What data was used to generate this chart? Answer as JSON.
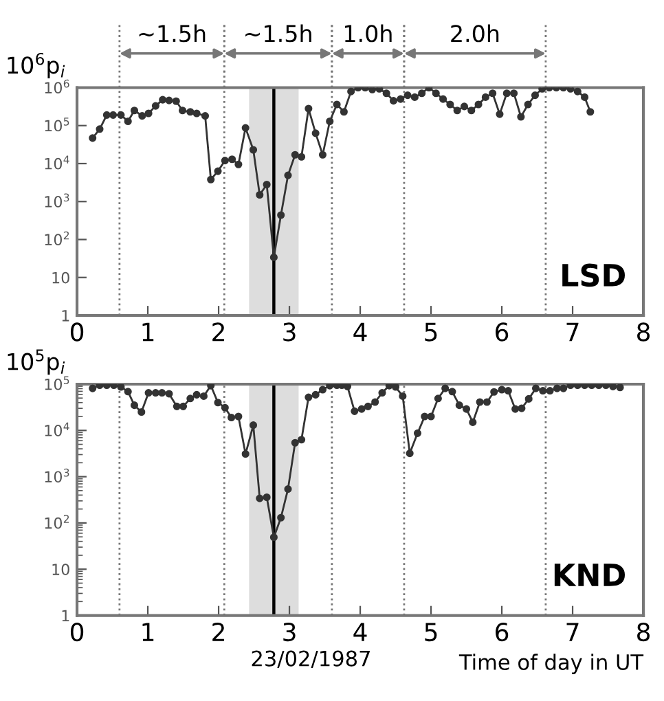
{
  "chart_data": [
    {
      "type": "line",
      "ylabel": "10$^{6}$p$_{i}$",
      "annotations": [
        "LSD"
      ],
      "marker": "circle",
      "line_style": "solid",
      "log": "y",
      "grid": false,
      "legend": false,
      "xlim": [
        0,
        8
      ],
      "xticks": [
        0,
        1,
        2,
        3,
        4,
        5,
        6,
        7,
        8
      ],
      "ylim": [
        1,
        1000000
      ],
      "yticks": [
        1,
        10,
        {
          "value": 100,
          "label": "10$^{2}$"
        },
        {
          "value": 1000,
          "label": "10$^{3}$"
        },
        {
          "value": 10000,
          "label": "10$^{4}$"
        },
        {
          "value": 100000,
          "label": "10$^{5}$"
        },
        {
          "value": 1000000,
          "label": "10$^{6}$"
        }
      ],
      "x": [
        0.22,
        0.32,
        0.42,
        0.51,
        0.62,
        0.72,
        0.81,
        0.92,
        1.01,
        1.11,
        1.21,
        1.3,
        1.4,
        1.49,
        1.6,
        1.69,
        1.81,
        1.89,
        1.99,
        2.09,
        2.19,
        2.28,
        2.38,
        2.49,
        2.58,
        2.68,
        2.78,
        2.88,
        2.98,
        3.08,
        3.17,
        3.27,
        3.37,
        3.47,
        3.57,
        3.67,
        3.77,
        3.87,
        3.97,
        4.07,
        4.17,
        4.27,
        4.37,
        4.47,
        4.57,
        4.67,
        4.77,
        4.87,
        4.97,
        5.07,
        5.17,
        5.27,
        5.37,
        5.47,
        5.57,
        5.67,
        5.77,
        5.87,
        5.97,
        6.07,
        6.17,
        6.27,
        6.37,
        6.47,
        6.57,
        6.67,
        6.77,
        6.87,
        6.97,
        7.07,
        7.17,
        7.25
      ],
      "series": [
        {
          "color": "#333333",
          "values": [
            47000,
            81000,
            190000,
            190000,
            190000,
            130000,
            250000,
            180000,
            210000,
            330000,
            480000,
            460000,
            440000,
            250000,
            230000,
            210000,
            180000,
            3800,
            6300,
            12000,
            13000,
            9500,
            87000,
            23000,
            1500,
            2800,
            34,
            440,
            4900,
            17000,
            15000,
            280000,
            63000,
            17000,
            130000,
            360000,
            230000,
            790000,
            1000000,
            1000000,
            890000,
            930000,
            710000,
            450000,
            500000,
            630000,
            560000,
            710000,
            1000000,
            710000,
            500000,
            360000,
            250000,
            320000,
            250000,
            360000,
            560000,
            710000,
            200000,
            710000,
            710000,
            170000,
            360000,
            630000,
            930000,
            1000000,
            1000000,
            1000000,
            930000,
            790000,
            560000,
            230000
          ]
        }
      ],
      "ref_lines": [
        {
          "axis": "x",
          "value": 0.6,
          "label": "~1.5h",
          "color": "#777777",
          "line_style": "dotted"
        },
        {
          "axis": "x",
          "value": 2.08,
          "label": "~1.5h",
          "color": "#777777",
          "line_style": "dotted"
        },
        {
          "axis": "x",
          "value": 3.6,
          "label": "1.0h",
          "color": "#777777",
          "line_style": "dotted"
        },
        {
          "axis": "x",
          "value": 4.62,
          "label": "2.0h",
          "color": "#777777",
          "line_style": "dotted"
        },
        {
          "axis": "x",
          "value": 6.62,
          "color": "#777777",
          "line_style": "dotted"
        },
        {
          "axis": "x",
          "value": 2.78,
          "color": "#000000",
          "line_style": "solid"
        }
      ],
      "bands": [
        {
          "axis": "x",
          "from": 2.43,
          "to": 3.13,
          "color": "#dddddd"
        }
      ]
    },
    {
      "type": "line",
      "ylabel": "10$^{5}$p$_{i}$",
      "xlabel": "Time of day in UT",
      "annotations": [
        "KND",
        "23/02/1987"
      ],
      "marker": "circle",
      "line_style": "solid",
      "log": "y",
      "grid": false,
      "legend": false,
      "xlim": [
        0,
        8
      ],
      "xticks": [
        0,
        1,
        2,
        3,
        4,
        5,
        6,
        7,
        8
      ],
      "ylim": [
        1,
        100000
      ],
      "yticks": [
        1,
        10,
        {
          "value": 100,
          "label": "10$^{2}$"
        },
        {
          "value": 1000,
          "label": "10$^{3}$"
        },
        {
          "value": 10000,
          "label": "10$^{4}$"
        },
        {
          "value": 100000,
          "label": "10$^{5}$"
        }
      ],
      "x": [
        0.22,
        0.32,
        0.42,
        0.52,
        0.62,
        0.72,
        0.81,
        0.91,
        1.01,
        1.11,
        1.2,
        1.3,
        1.41,
        1.5,
        1.6,
        1.69,
        1.79,
        1.89,
        1.99,
        2.09,
        2.18,
        2.28,
        2.38,
        2.49,
        2.58,
        2.68,
        2.78,
        2.88,
        2.98,
        3.08,
        3.17,
        3.27,
        3.37,
        3.47,
        3.57,
        3.67,
        3.74,
        3.82,
        3.92,
        4.02,
        4.11,
        4.21,
        4.31,
        4.41,
        4.5,
        4.6,
        4.7,
        4.81,
        4.91,
        5.0,
        5.1,
        5.2,
        5.3,
        5.4,
        5.5,
        5.59,
        5.69,
        5.79,
        5.89,
        6.0,
        6.09,
        6.19,
        6.28,
        6.38,
        6.48,
        6.58,
        6.68,
        6.78,
        6.87,
        6.97,
        7.07,
        7.17,
        7.27,
        7.37,
        7.47,
        7.57,
        7.67
      ],
      "series": [
        {
          "color": "#333333",
          "values": [
            81000,
            95000,
            95000,
            95000,
            87000,
            69000,
            35000,
            25000,
            65000,
            65000,
            65000,
            62000,
            33000,
            33000,
            49000,
            59000,
            55000,
            93000,
            40000,
            31000,
            19000,
            20000,
            3100,
            13000,
            340,
            360,
            49,
            130,
            540,
            5400,
            6300,
            52000,
            59000,
            76000,
            93000,
            95000,
            95000,
            89000,
            26000,
            29000,
            33000,
            41000,
            65000,
            93000,
            87000,
            55000,
            3200,
            8700,
            20000,
            20000,
            49000,
            81000,
            69000,
            35000,
            29000,
            15000,
            41000,
            41000,
            68000,
            76000,
            72000,
            29000,
            30000,
            48000,
            81000,
            72000,
            72000,
            81000,
            81000,
            95000,
            95000,
            95000,
            95000,
            95000,
            95000,
            89000,
            85000
          ]
        }
      ],
      "ref_lines": [
        {
          "axis": "x",
          "value": 0.6,
          "color": "#777777",
          "line_style": "dotted"
        },
        {
          "axis": "x",
          "value": 2.08,
          "color": "#777777",
          "line_style": "dotted"
        },
        {
          "axis": "x",
          "value": 3.6,
          "color": "#777777",
          "line_style": "dotted"
        },
        {
          "axis": "x",
          "value": 4.62,
          "color": "#777777",
          "line_style": "dotted"
        },
        {
          "axis": "x",
          "value": 6.62,
          "color": "#777777",
          "line_style": "dotted"
        },
        {
          "axis": "x",
          "value": 2.78,
          "color": "#000000",
          "line_style": "solid"
        }
      ],
      "bands": [
        {
          "axis": "x",
          "from": 2.43,
          "to": 3.13,
          "color": "#dddddd"
        }
      ]
    }
  ]
}
